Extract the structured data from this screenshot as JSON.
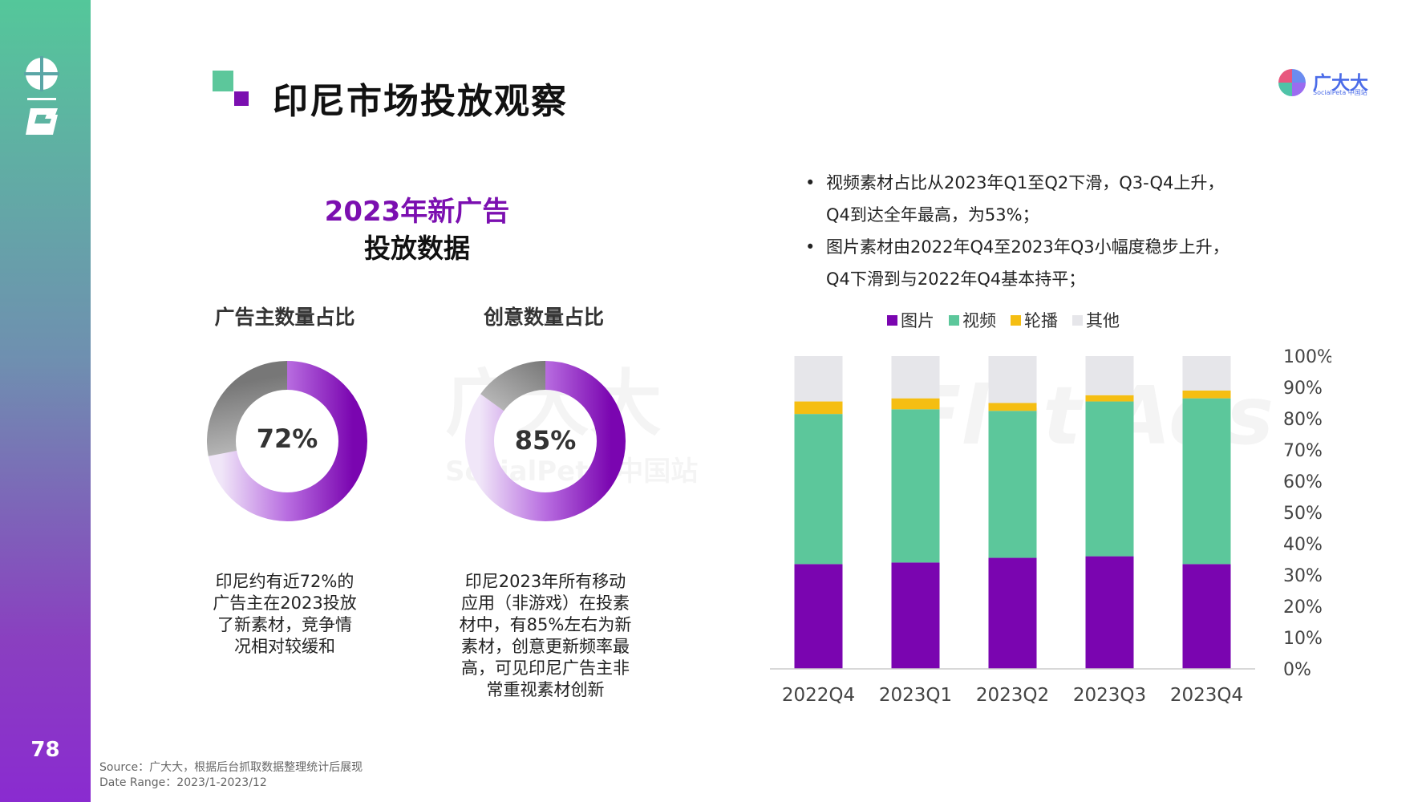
{
  "page": {
    "title": "印尼市场投放观察",
    "number": "78",
    "brand": {
      "name": "广大大",
      "sub": "SocialPeta 中国站"
    }
  },
  "section": {
    "title_line1": "2023年新广告",
    "title_line2": "投放数据"
  },
  "donuts": [
    {
      "label": "广告主数量占比",
      "value": "72%",
      "fraction": 0.72,
      "desc": [
        "印尼约有近72%的",
        "广告主在2023投放",
        "了新素材，竞争情",
        "况相对较缓和"
      ]
    },
    {
      "label": "创意数量占比",
      "value": "85%",
      "fraction": 0.85,
      "desc": [
        "印尼2023年所有移动",
        "应用（非游戏）在投素",
        "材中，有85%左右为新",
        "素材，创意更新频率最",
        "高，可见印尼广告主非",
        "常重视素材创新"
      ]
    }
  ],
  "bullets": [
    [
      "视频素材占比从2023年Q1至Q2下滑，Q3-Q4上升，",
      "Q4到达全年最高，为53%；"
    ],
    [
      "图片素材由2022年Q4至2023年Q3小幅度稳步上升，",
      "Q4下滑到与2022年Q4基本持平；"
    ]
  ],
  "source": {
    "line1": "Source：广大大，根据后台抓取数据整理统计后展现",
    "line2": "Date Range：2023/1-2023/12"
  },
  "watermarks": [
    "广大大",
    "SocialPeta 中国站",
    "Flat Ads"
  ],
  "colors": {
    "image": "#7a05b0",
    "video": "#5cc79b",
    "carousel": "#f5be12",
    "other": "#e6e6ea"
  },
  "chart_data": {
    "type": "bar",
    "stacked": true,
    "categories": [
      "2022Q4",
      "2023Q1",
      "2023Q2",
      "2023Q3",
      "2023Q4"
    ],
    "series": [
      {
        "name": "图片",
        "color": "#7a05b0",
        "values": [
          33.5,
          34,
          35.5,
          36,
          33.5
        ]
      },
      {
        "name": "视频",
        "color": "#5cc79b",
        "values": [
          48,
          49,
          47,
          49.5,
          53
        ]
      },
      {
        "name": "轮播",
        "color": "#f5be12",
        "values": [
          4,
          3.5,
          2.5,
          2,
          2.5
        ]
      },
      {
        "name": "其他",
        "color": "#e6e6ea",
        "values": [
          14.5,
          13.5,
          15,
          12.5,
          11
        ]
      }
    ],
    "yticks": [
      "0%",
      "10%",
      "20%",
      "30%",
      "40%",
      "50%",
      "60%",
      "70%",
      "80%",
      "90%",
      "100%"
    ],
    "ylim": [
      0,
      100
    ],
    "legend_position": "top"
  }
}
